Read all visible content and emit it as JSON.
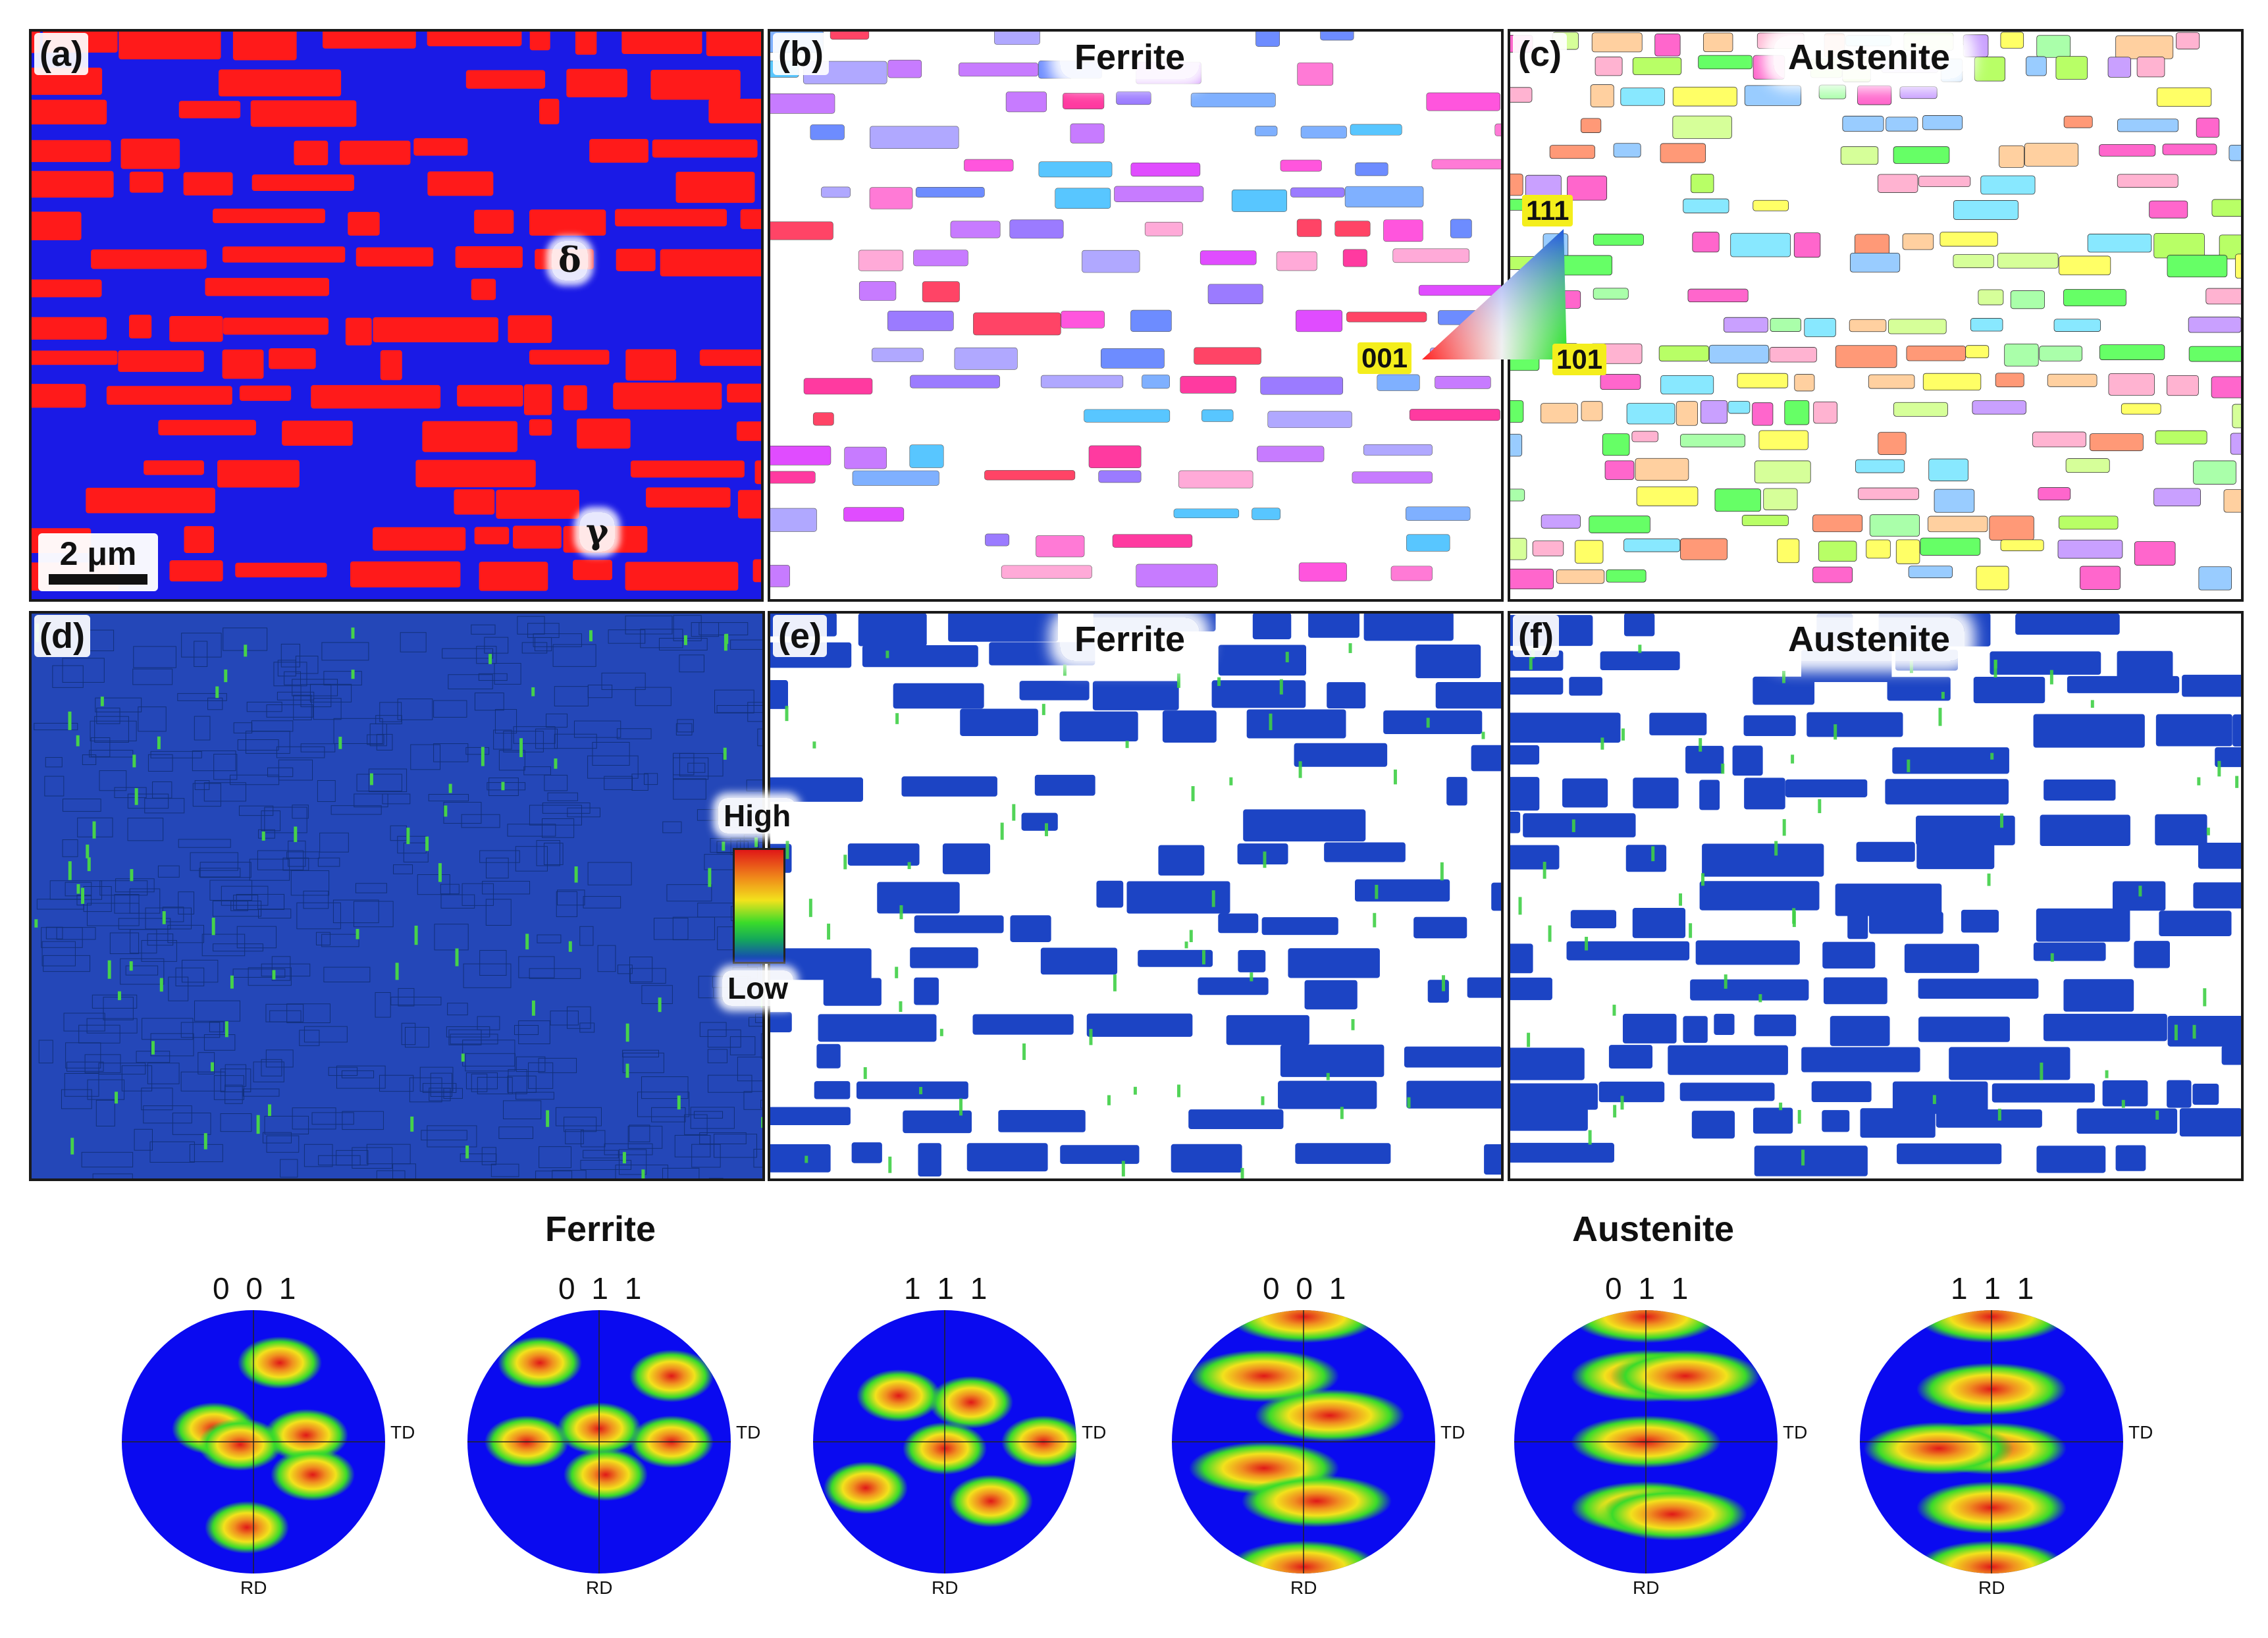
{
  "panels": [
    {
      "id": "a",
      "label": "(a)",
      "title": "",
      "kind": "phase"
    },
    {
      "id": "b",
      "label": "(b)",
      "title": "Ferrite",
      "kind": "ipf-ferrite"
    },
    {
      "id": "c",
      "label": "(c)",
      "title": "Austenite",
      "kind": "ipf-austenite"
    },
    {
      "id": "d",
      "label": "(d)",
      "title": "",
      "kind": "kam-all"
    },
    {
      "id": "e",
      "label": "(e)",
      "title": "Ferrite",
      "kind": "kam-ferrite"
    },
    {
      "id": "f",
      "label": "(f)",
      "title": "Austenite",
      "kind": "kam-austenite"
    }
  ],
  "phase_symbols": {
    "delta": "δ",
    "gamma": "γ"
  },
  "scale_bar": "2 μm",
  "ipf_key": {
    "c001": "001",
    "c101": "101",
    "c111": "111"
  },
  "kam_legend": {
    "high": "High",
    "low": "Low"
  },
  "groups": {
    "ferrite": "Ferrite",
    "austenite": "Austenite"
  },
  "pole_figures": [
    {
      "hkl": "0 0 1",
      "td": "TD",
      "rd": "RD",
      "phase": "ferrite"
    },
    {
      "hkl": "0 1 1",
      "td": "TD",
      "rd": "RD",
      "phase": "ferrite"
    },
    {
      "hkl": "1 1 1",
      "td": "TD",
      "rd": "RD",
      "phase": "ferrite"
    },
    {
      "hkl": "0 0 1",
      "td": "TD",
      "rd": "RD",
      "phase": "austenite"
    },
    {
      "hkl": "0 1 1",
      "td": "TD",
      "rd": "RD",
      "phase": "austenite"
    },
    {
      "hkl": "1 1 1",
      "td": "TD",
      "rd": "RD",
      "phase": "austenite"
    }
  ],
  "colors": {
    "ferrite_phase": "#ff1a1a",
    "austenite_phase": "#1a1ae6",
    "kam_low": "#1c44c4",
    "kam_mid": "#2fb84a",
    "pole_blue": "#0a0af0"
  }
}
